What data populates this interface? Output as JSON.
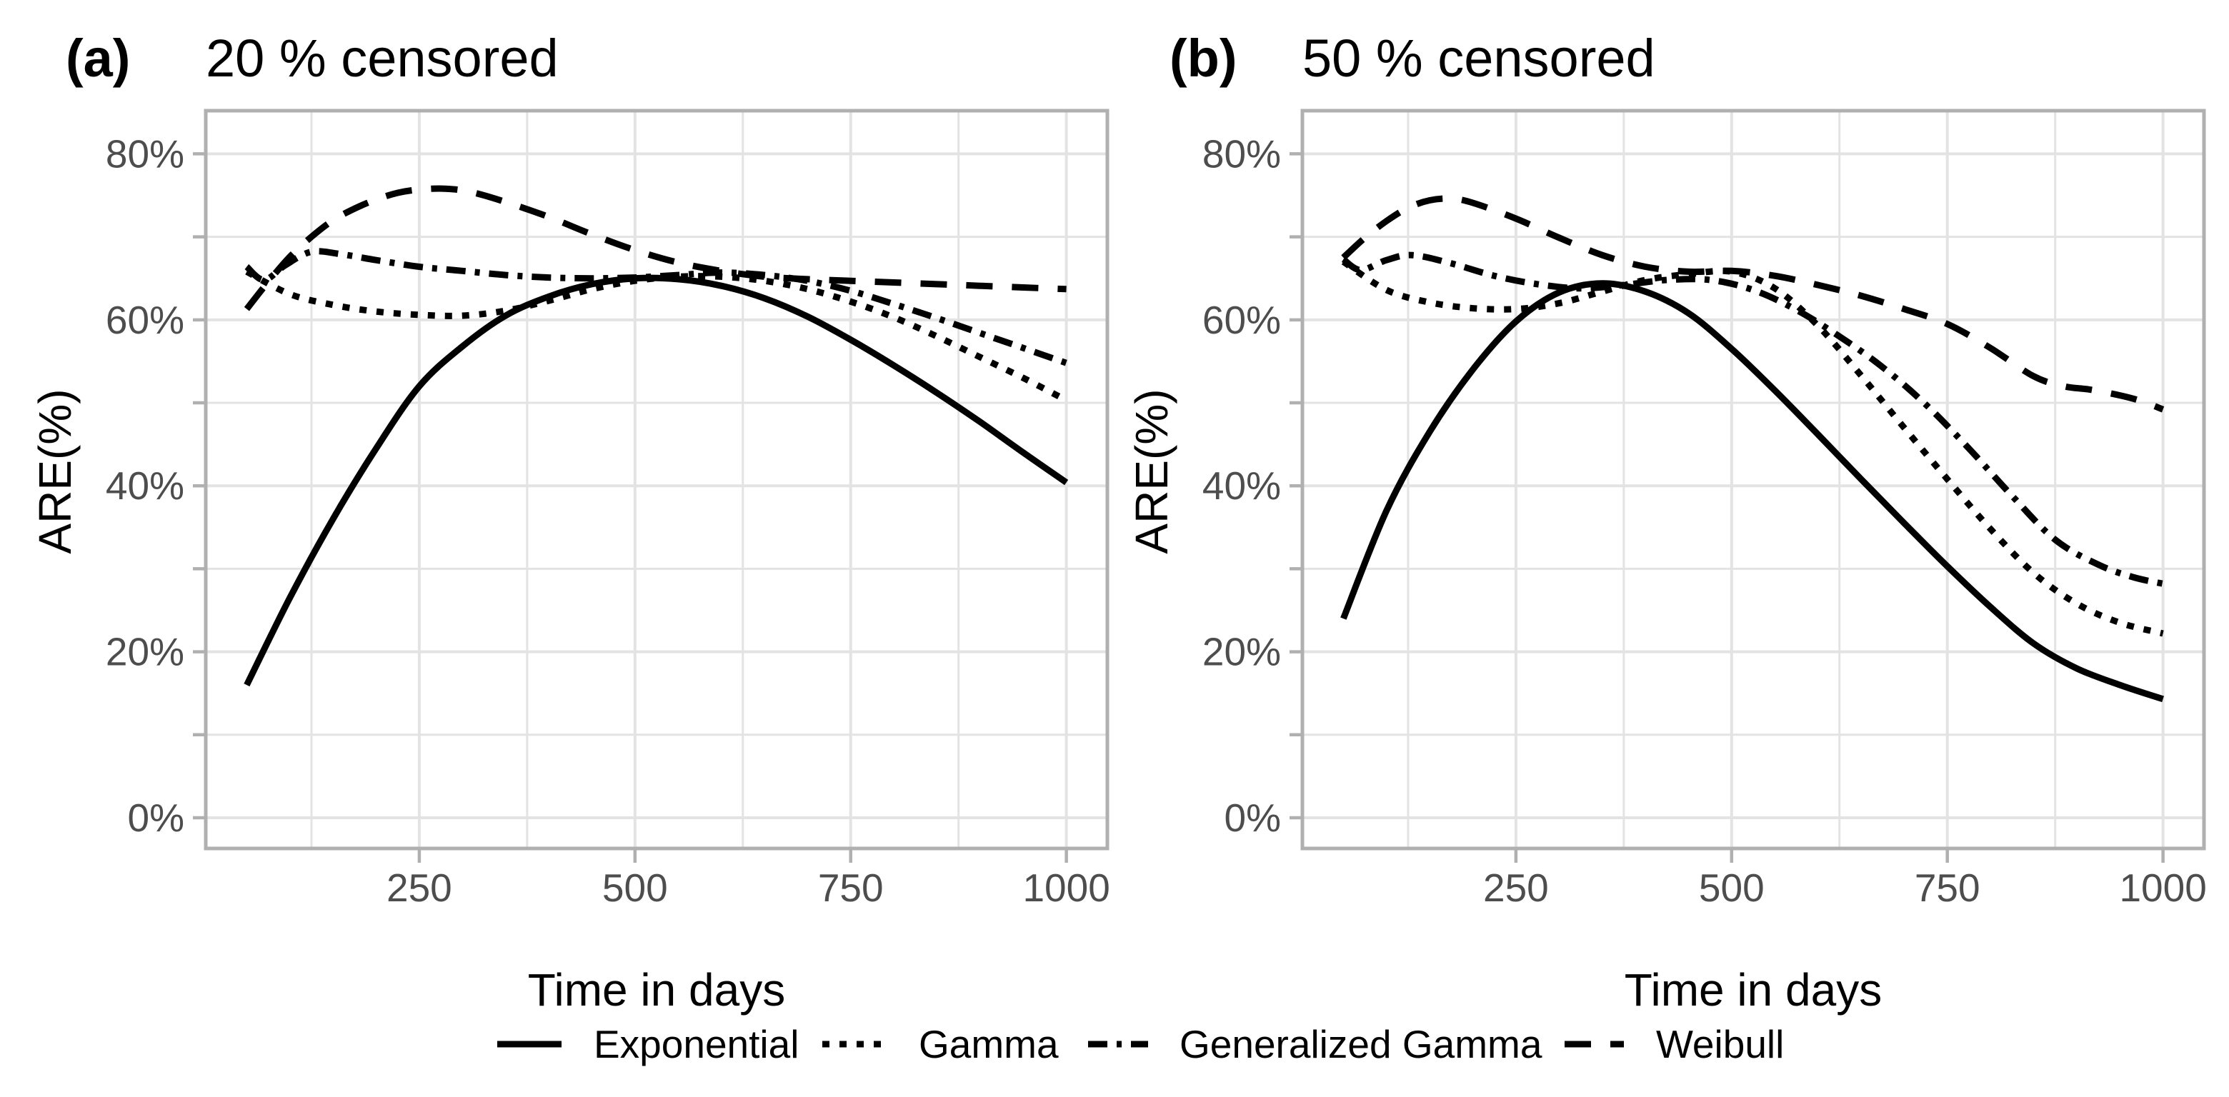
{
  "figure": {
    "panels": [
      {
        "tag": "(a)",
        "title": "20 % censored"
      },
      {
        "tag": "(b)",
        "title": "50 % censored"
      }
    ],
    "x_axis": {
      "title": "Time in days",
      "ticks": [
        250,
        500,
        750,
        1000
      ],
      "tick_labels": [
        "250",
        "500",
        "750",
        "1000"
      ],
      "minor_gridlines": [
        125,
        375,
        625,
        875
      ],
      "display_range": [
        2.5,
        1047.5
      ]
    },
    "y_axis": {
      "title": "ARE(%)",
      "ticks": [
        0,
        10,
        20,
        30,
        40,
        50,
        60,
        70,
        80
      ],
      "labeled_ticks": [
        0,
        20,
        40,
        60,
        80
      ],
      "tick_labels": [
        "0%",
        "20%",
        "40%",
        "60%",
        "80%"
      ],
      "minor_gridlines": [
        10,
        30,
        50,
        70
      ],
      "display_range": [
        -3.7,
        85.2
      ]
    },
    "legend": [
      {
        "label": "Exponential",
        "linetype": "solid"
      },
      {
        "label": "Gamma",
        "linetype": "dotted"
      },
      {
        "label": "Generalized Gamma",
        "linetype": "dashdot"
      },
      {
        "label": "Weibull",
        "linetype": "longdash"
      }
    ],
    "colors": {
      "curve": "#000000",
      "gridline": "#e3e3e3",
      "panel_border": "#b0b0b0",
      "tick": "#b0b0b0",
      "tick_label": "#4d4d4d",
      "text": "#000000",
      "background": "#ffffff"
    }
  },
  "chart_data": [
    {
      "type": "line",
      "panel": "(a)",
      "title": "20 % censored",
      "xlabel": "Time in days",
      "ylabel": "ARE(%)",
      "xlim": [
        0,
        1050
      ],
      "ylim": [
        0,
        80
      ],
      "x_unit": "days",
      "y_unit": "percent ARE",
      "series": [
        {
          "name": "Exponential",
          "linetype": "solid",
          "points": [
            [
              50,
              16
            ],
            [
              100,
              26.5
            ],
            [
              150,
              36
            ],
            [
              200,
              44.5
            ],
            [
              250,
              52
            ],
            [
              300,
              56.8
            ],
            [
              350,
              60.5
            ],
            [
              400,
              62.8
            ],
            [
              450,
              64.3
            ],
            [
              500,
              65
            ],
            [
              550,
              64.9
            ],
            [
              600,
              64.1
            ],
            [
              650,
              62.6
            ],
            [
              700,
              60.4
            ],
            [
              750,
              57.6
            ],
            [
              800,
              54.5
            ],
            [
              850,
              51.2
            ],
            [
              900,
              47.7
            ],
            [
              950,
              44
            ],
            [
              1000,
              40.4
            ]
          ]
        },
        {
          "name": "Gamma",
          "linetype": "dotted",
          "points": [
            [
              50,
              65.8
            ],
            [
              100,
              63.1
            ],
            [
              150,
              61.8
            ],
            [
              200,
              61
            ],
            [
              250,
              60.6
            ],
            [
              300,
              60.5
            ],
            [
              350,
              61.1
            ],
            [
              400,
              62.3
            ],
            [
              450,
              63.7
            ],
            [
              500,
              64.7
            ],
            [
              550,
              65.2
            ],
            [
              600,
              65.2
            ],
            [
              650,
              64.7
            ],
            [
              700,
              63.7
            ],
            [
              750,
              62.2
            ],
            [
              800,
              60.3
            ],
            [
              850,
              58
            ],
            [
              900,
              55.5
            ],
            [
              950,
              53
            ],
            [
              1000,
              50.3
            ]
          ]
        },
        {
          "name": "Generalized Gamma",
          "linetype": "dashdot",
          "points": [
            [
              50,
              66.4
            ],
            [
              70,
              64.8
            ],
            [
              95,
              66.6
            ],
            [
              125,
              68.2
            ],
            [
              160,
              67.9
            ],
            [
              200,
              67.2
            ],
            [
              250,
              66.4
            ],
            [
              300,
              65.9
            ],
            [
              350,
              65.4
            ],
            [
              400,
              65.1
            ],
            [
              450,
              65
            ],
            [
              500,
              65.1
            ],
            [
              550,
              65.4
            ],
            [
              600,
              65.7
            ],
            [
              650,
              65.4
            ],
            [
              700,
              64.7
            ],
            [
              750,
              63.5
            ],
            [
              800,
              61.9
            ],
            [
              850,
              60.2
            ],
            [
              900,
              58.4
            ],
            [
              950,
              56.6
            ],
            [
              1000,
              54.8
            ]
          ]
        },
        {
          "name": "Weibull",
          "linetype": "longdash",
          "points": [
            [
              50,
              61.3
            ],
            [
              75,
              64.6
            ],
            [
              100,
              67.6
            ],
            [
              125,
              70
            ],
            [
              150,
              72
            ],
            [
              175,
              73.4
            ],
            [
              200,
              74.5
            ],
            [
              225,
              75.3
            ],
            [
              250,
              75.7
            ],
            [
              280,
              75.8
            ],
            [
              310,
              75.4
            ],
            [
              350,
              74.2
            ],
            [
              400,
              72.4
            ],
            [
              450,
              70.3
            ],
            [
              500,
              68.4
            ],
            [
              550,
              66.9
            ],
            [
              600,
              65.9
            ],
            [
              650,
              65.2
            ],
            [
              700,
              64.9
            ],
            [
              750,
              64.7
            ],
            [
              800,
              64.5
            ],
            [
              850,
              64.3
            ],
            [
              900,
              64.1
            ],
            [
              950,
              63.9
            ],
            [
              1000,
              63.7
            ]
          ]
        }
      ]
    },
    {
      "type": "line",
      "panel": "(b)",
      "title": "50 % censored",
      "xlabel": "Time in days",
      "ylabel": "ARE(%)",
      "xlim": [
        0,
        1050
      ],
      "ylim": [
        0,
        80
      ],
      "x_unit": "days",
      "y_unit": "percent ARE",
      "series": [
        {
          "name": "Exponential",
          "linetype": "solid",
          "points": [
            [
              50,
              24
            ],
            [
              100,
              37
            ],
            [
              150,
              46.5
            ],
            [
              200,
              54
            ],
            [
              250,
              59.8
            ],
            [
              300,
              63.3
            ],
            [
              350,
              64.4
            ],
            [
              400,
              63.4
            ],
            [
              450,
              60.8
            ],
            [
              500,
              56.5
            ],
            [
              550,
              51.5
            ],
            [
              600,
              46.2
            ],
            [
              650,
              40.8
            ],
            [
              700,
              35.5
            ],
            [
              750,
              30.3
            ],
            [
              800,
              25.4
            ],
            [
              850,
              21
            ],
            [
              900,
              18
            ],
            [
              950,
              16
            ],
            [
              1000,
              14.3
            ]
          ]
        },
        {
          "name": "Gamma",
          "linetype": "dotted",
          "points": [
            [
              50,
              67
            ],
            [
              100,
              63.6
            ],
            [
              150,
              62.1
            ],
            [
              200,
              61.4
            ],
            [
              250,
              61.3
            ],
            [
              300,
              62
            ],
            [
              350,
              63.4
            ],
            [
              400,
              64.8
            ],
            [
              450,
              65.5
            ],
            [
              500,
              65.8
            ],
            [
              550,
              63.8
            ],
            [
              600,
              59.3
            ],
            [
              650,
              53.3
            ],
            [
              700,
              47
            ],
            [
              750,
              40.8
            ],
            [
              800,
              34.8
            ],
            [
              850,
              29.5
            ],
            [
              900,
              25.8
            ],
            [
              950,
              23.5
            ],
            [
              1000,
              22.2
            ]
          ]
        },
        {
          "name": "Generalized Gamma",
          "linetype": "dashdot",
          "points": [
            [
              50,
              67.3
            ],
            [
              70,
              66
            ],
            [
              100,
              67.2
            ],
            [
              130,
              67.8
            ],
            [
              175,
              66.8
            ],
            [
              225,
              65.3
            ],
            [
              275,
              64.3
            ],
            [
              325,
              63.8
            ],
            [
              375,
              64.2
            ],
            [
              425,
              64.8
            ],
            [
              475,
              64.8
            ],
            [
              525,
              63.6
            ],
            [
              575,
              61.2
            ],
            [
              625,
              58
            ],
            [
              675,
              54.3
            ],
            [
              725,
              49.8
            ],
            [
              775,
              44.5
            ],
            [
              825,
              38.8
            ],
            [
              875,
              33.5
            ],
            [
              925,
              30.5
            ],
            [
              965,
              29
            ],
            [
              1000,
              28.2
            ]
          ]
        },
        {
          "name": "Weibull",
          "linetype": "longdash",
          "points": [
            [
              50,
              67.5
            ],
            [
              75,
              69.9
            ],
            [
              100,
              71.9
            ],
            [
              125,
              73.5
            ],
            [
              150,
              74.4
            ],
            [
              175,
              74.6
            ],
            [
              200,
              74.1
            ],
            [
              250,
              72.2
            ],
            [
              300,
              69.9
            ],
            [
              350,
              67.8
            ],
            [
              400,
              66.4
            ],
            [
              450,
              65.8
            ],
            [
              500,
              65.9
            ],
            [
              550,
              65.3
            ],
            [
              600,
              64.2
            ],
            [
              650,
              62.9
            ],
            [
              700,
              61.3
            ],
            [
              750,
              59.5
            ],
            [
              800,
              56.6
            ],
            [
              850,
              53.2
            ],
            [
              885,
              52
            ],
            [
              915,
              51.6
            ],
            [
              950,
              50.9
            ],
            [
              975,
              50.2
            ],
            [
              1000,
              49.2
            ]
          ]
        }
      ]
    }
  ]
}
